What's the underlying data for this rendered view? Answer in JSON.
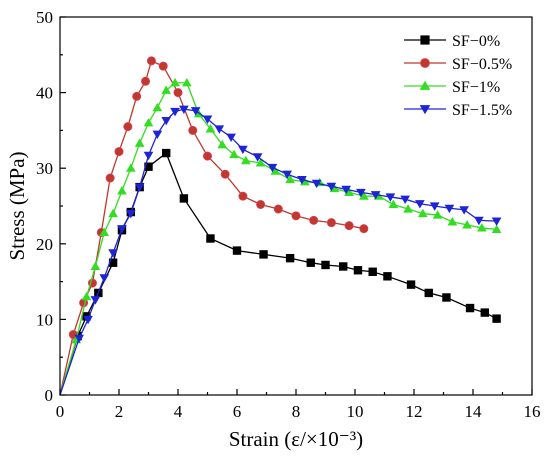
{
  "chart_data": {
    "type": "line",
    "xlabel": "Strain (ε/×10⁻³)",
    "ylabel": "Stress (MPa)",
    "xlim": [
      0,
      16
    ],
    "ylim": [
      0,
      50
    ],
    "xticks": [
      0,
      2,
      4,
      6,
      8,
      10,
      12,
      14,
      16
    ],
    "yticks": [
      0,
      10,
      20,
      30,
      40,
      50
    ],
    "grid": false,
    "legend_position": "top-right",
    "series": [
      {
        "name": "SF−0%",
        "color": "#000000",
        "marker": "square",
        "x": [
          0,
          0.6,
          0.9,
          1.3,
          1.8,
          2.1,
          2.4,
          2.7,
          3.0,
          3.6,
          4.2,
          5.1,
          6.0,
          6.9,
          7.8,
          8.5,
          9.0,
          9.6,
          10.1,
          10.6,
          11.1,
          11.9,
          12.5,
          13.1,
          13.9,
          14.4,
          14.8
        ],
        "y": [
          0,
          7.8,
          10.4,
          13.5,
          17.5,
          21.8,
          24.2,
          27.5,
          30.2,
          32.0,
          26.0,
          20.7,
          19.1,
          18.6,
          18.1,
          17.5,
          17.2,
          17.0,
          16.5,
          16.3,
          15.7,
          14.6,
          13.5,
          12.9,
          11.5,
          10.9,
          10.1
        ]
      },
      {
        "name": "SF−0.5%",
        "color": "#c0392b",
        "marker": "circle",
        "x": [
          0,
          0.45,
          0.8,
          1.1,
          1.4,
          1.7,
          2.0,
          2.3,
          2.6,
          2.9,
          3.1,
          3.5,
          4.0,
          4.5,
          5.0,
          5.6,
          6.2,
          6.8,
          7.4,
          8.0,
          8.6,
          9.2,
          9.8,
          10.3
        ],
        "y": [
          0,
          8.0,
          12.2,
          14.8,
          21.5,
          28.7,
          32.2,
          35.5,
          39.5,
          41.5,
          44.2,
          43.5,
          40.0,
          35.0,
          31.6,
          29.2,
          26.3,
          25.2,
          24.6,
          23.7,
          23.1,
          22.8,
          22.4,
          22.0
        ]
      },
      {
        "name": "SF−1%",
        "color": "#33dd22",
        "marker": "triangle-up",
        "x": [
          0,
          0.55,
          0.9,
          1.2,
          1.5,
          1.8,
          2.1,
          2.4,
          2.7,
          3.0,
          3.3,
          3.6,
          3.9,
          4.3,
          4.7,
          5.1,
          5.5,
          5.9,
          6.3,
          6.8,
          7.3,
          7.8,
          8.3,
          8.8,
          9.3,
          9.8,
          10.3,
          10.8,
          11.3,
          11.8,
          12.3,
          12.8,
          13.3,
          13.8,
          14.3,
          14.8
        ],
        "y": [
          0,
          7.3,
          13.0,
          17.0,
          21.5,
          24.0,
          27.0,
          30.0,
          33.3,
          36.0,
          38.0,
          40.3,
          41.3,
          41.3,
          37.2,
          35.2,
          33.1,
          31.8,
          31.0,
          30.7,
          29.6,
          28.5,
          28.2,
          28.1,
          27.3,
          26.8,
          26.3,
          26.3,
          25.2,
          24.6,
          24.0,
          23.8,
          22.9,
          22.5,
          22.1,
          21.9
        ]
      },
      {
        "name": "SF−1.5%",
        "color": "#1d24d6",
        "marker": "triangle-down",
        "x": [
          0,
          0.65,
          0.95,
          1.2,
          1.5,
          1.8,
          2.1,
          2.4,
          2.7,
          3.0,
          3.3,
          3.6,
          3.9,
          4.2,
          4.6,
          5.0,
          5.4,
          5.8,
          6.2,
          6.7,
          7.2,
          7.7,
          8.2,
          8.7,
          9.2,
          9.7,
          10.2,
          10.7,
          11.2,
          11.7,
          12.2,
          12.7,
          13.2,
          13.7,
          14.2,
          14.8
        ],
        "y": [
          0,
          7.5,
          10.0,
          12.6,
          15.5,
          18.8,
          22.0,
          24.0,
          27.5,
          31.7,
          34.5,
          36.3,
          37.5,
          37.8,
          37.6,
          36.5,
          35.2,
          34.1,
          32.5,
          31.5,
          30.1,
          29.2,
          28.5,
          28.0,
          27.6,
          27.2,
          26.8,
          26.5,
          26.2,
          25.9,
          25.3,
          25.0,
          24.7,
          24.5,
          23.1,
          23.0
        ]
      }
    ]
  }
}
